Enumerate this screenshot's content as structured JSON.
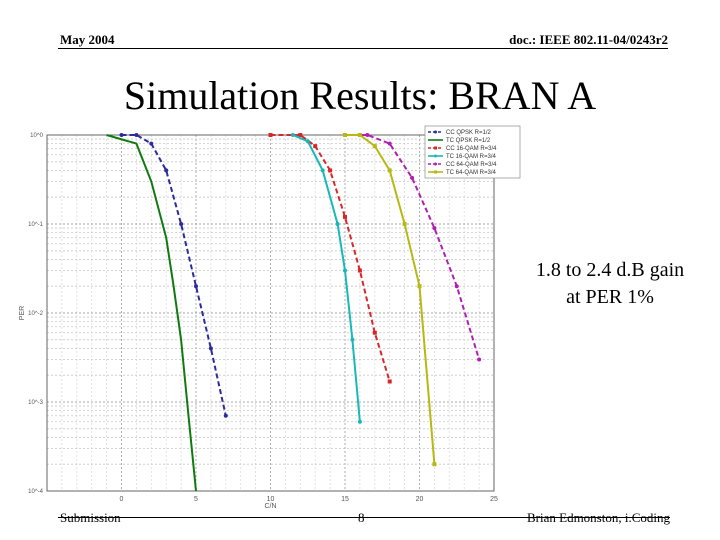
{
  "header": {
    "date": "May 2004",
    "doc_id": "doc.: IEEE 802.11-04/0243r2"
  },
  "slide": {
    "title": "Simulation Results: BRAN A",
    "annotation_line1": "1.8 to 2.4 d.B gain",
    "annotation_line2": "at PER 1%"
  },
  "footer": {
    "left": "Submission",
    "page": "8",
    "author": "Brian Edmonston, i.Coding"
  },
  "chart_data": {
    "type": "line",
    "xlabel": "C/N",
    "ylabel": "PER",
    "xlim": [
      -5,
      25
    ],
    "ylim": [
      0.0001,
      1
    ],
    "yscale": "log",
    "grid": true,
    "legend_position": "top-right",
    "x_ticks": [
      "0",
      "5",
      "10",
      "15",
      "20",
      "25"
    ],
    "y_ticks": [
      "10^0",
      "10^-1",
      "10^-2",
      "10^-3",
      "10^-4"
    ],
    "series": [
      {
        "name": "CC QPSK R=1/2",
        "color": "#2b2b9e",
        "dash": true,
        "marker": "dot",
        "x": [
          0,
          1,
          2,
          3,
          4,
          5,
          6,
          7
        ],
        "y": [
          1,
          1,
          0.8,
          0.4,
          0.1,
          0.02,
          0.004,
          0.0007
        ]
      },
      {
        "name": "TC QPSK R=1/2",
        "color": "#0f7a0f",
        "dash": false,
        "marker": "none",
        "x": [
          -1,
          1,
          2,
          3,
          3.5,
          4,
          4.5,
          5
        ],
        "y": [
          1,
          0.8,
          0.3,
          0.07,
          0.02,
          0.005,
          0.0007,
          0.0001
        ]
      },
      {
        "name": "CC 16-QAM R=3/4",
        "color": "#d62828",
        "dash": true,
        "marker": "square",
        "x": [
          10,
          12,
          13,
          14,
          15,
          16,
          17,
          18
        ],
        "y": [
          1,
          1,
          0.75,
          0.4,
          0.12,
          0.03,
          0.006,
          0.0017
        ]
      },
      {
        "name": "TC 16-QAM R=3/4",
        "color": "#19b8b8",
        "dash": false,
        "marker": "dot",
        "x": [
          11.5,
          12.5,
          13.5,
          14.5,
          15,
          15.5,
          16
        ],
        "y": [
          1,
          0.85,
          0.4,
          0.1,
          0.03,
          0.005,
          0.0006
        ]
      },
      {
        "name": "CC 64-QAM R=3/4",
        "color": "#b020b0",
        "dash": true,
        "marker": "dot",
        "x": [
          15,
          16.5,
          18,
          19.5,
          21,
          22.5,
          24
        ],
        "y": [
          1,
          1,
          0.8,
          0.33,
          0.09,
          0.02,
          0.003
        ]
      },
      {
        "name": "TC 64-QAM R=3/4",
        "color": "#b8b812",
        "dash": false,
        "marker": "square",
        "x": [
          15,
          16,
          17,
          18,
          19,
          20,
          21
        ],
        "y": [
          1,
          1,
          0.75,
          0.4,
          0.1,
          0.02,
          0.0002
        ]
      }
    ]
  }
}
